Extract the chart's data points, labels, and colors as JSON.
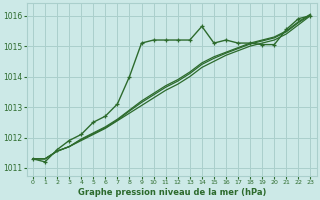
{
  "title": "Graphe pression niveau de la mer (hPa)",
  "bg_color": "#cce9e7",
  "grid_color": "#aacfcc",
  "line_color": "#2d6b2d",
  "xlim": [
    -0.5,
    23.5
  ],
  "ylim": [
    1010.75,
    1016.4
  ],
  "yticks": [
    1011,
    1012,
    1013,
    1014,
    1015,
    1016
  ],
  "xticks": [
    0,
    1,
    2,
    3,
    4,
    5,
    6,
    7,
    8,
    9,
    10,
    11,
    12,
    13,
    14,
    15,
    16,
    17,
    18,
    19,
    20,
    21,
    22,
    23
  ],
  "series": [
    {
      "y": [
        1011.3,
        1011.2,
        1011.6,
        1011.9,
        1012.1,
        1012.5,
        1012.7,
        1013.1,
        1014.0,
        1015.1,
        1015.2,
        1015.2,
        1015.2,
        1015.2,
        1015.65,
        1015.1,
        1015.2,
        1015.1,
        1015.1,
        1015.05,
        1015.05,
        1015.55,
        1015.9,
        1016.0
      ],
      "marker": true,
      "lw": 1.0
    },
    {
      "y": [
        1011.3,
        1011.3,
        1011.55,
        1011.7,
        1011.9,
        1012.1,
        1012.3,
        1012.55,
        1012.8,
        1013.05,
        1013.3,
        1013.55,
        1013.75,
        1014.0,
        1014.3,
        1014.5,
        1014.7,
        1014.85,
        1015.0,
        1015.1,
        1015.2,
        1015.4,
        1015.7,
        1016.0
      ],
      "marker": false,
      "lw": 0.9
    },
    {
      "y": [
        1011.3,
        1011.3,
        1011.55,
        1011.7,
        1011.95,
        1012.15,
        1012.35,
        1012.6,
        1012.9,
        1013.2,
        1013.45,
        1013.7,
        1013.9,
        1014.15,
        1014.45,
        1014.65,
        1014.8,
        1014.95,
        1015.1,
        1015.2,
        1015.3,
        1015.5,
        1015.8,
        1016.05
      ],
      "marker": false,
      "lw": 0.9
    },
    {
      "y": [
        1011.3,
        1011.3,
        1011.55,
        1011.7,
        1011.93,
        1012.12,
        1012.32,
        1012.57,
        1012.87,
        1013.15,
        1013.4,
        1013.65,
        1013.85,
        1014.1,
        1014.4,
        1014.6,
        1014.77,
        1014.92,
        1015.07,
        1015.17,
        1015.27,
        1015.47,
        1015.77,
        1016.02
      ],
      "marker": false,
      "lw": 0.9
    }
  ]
}
